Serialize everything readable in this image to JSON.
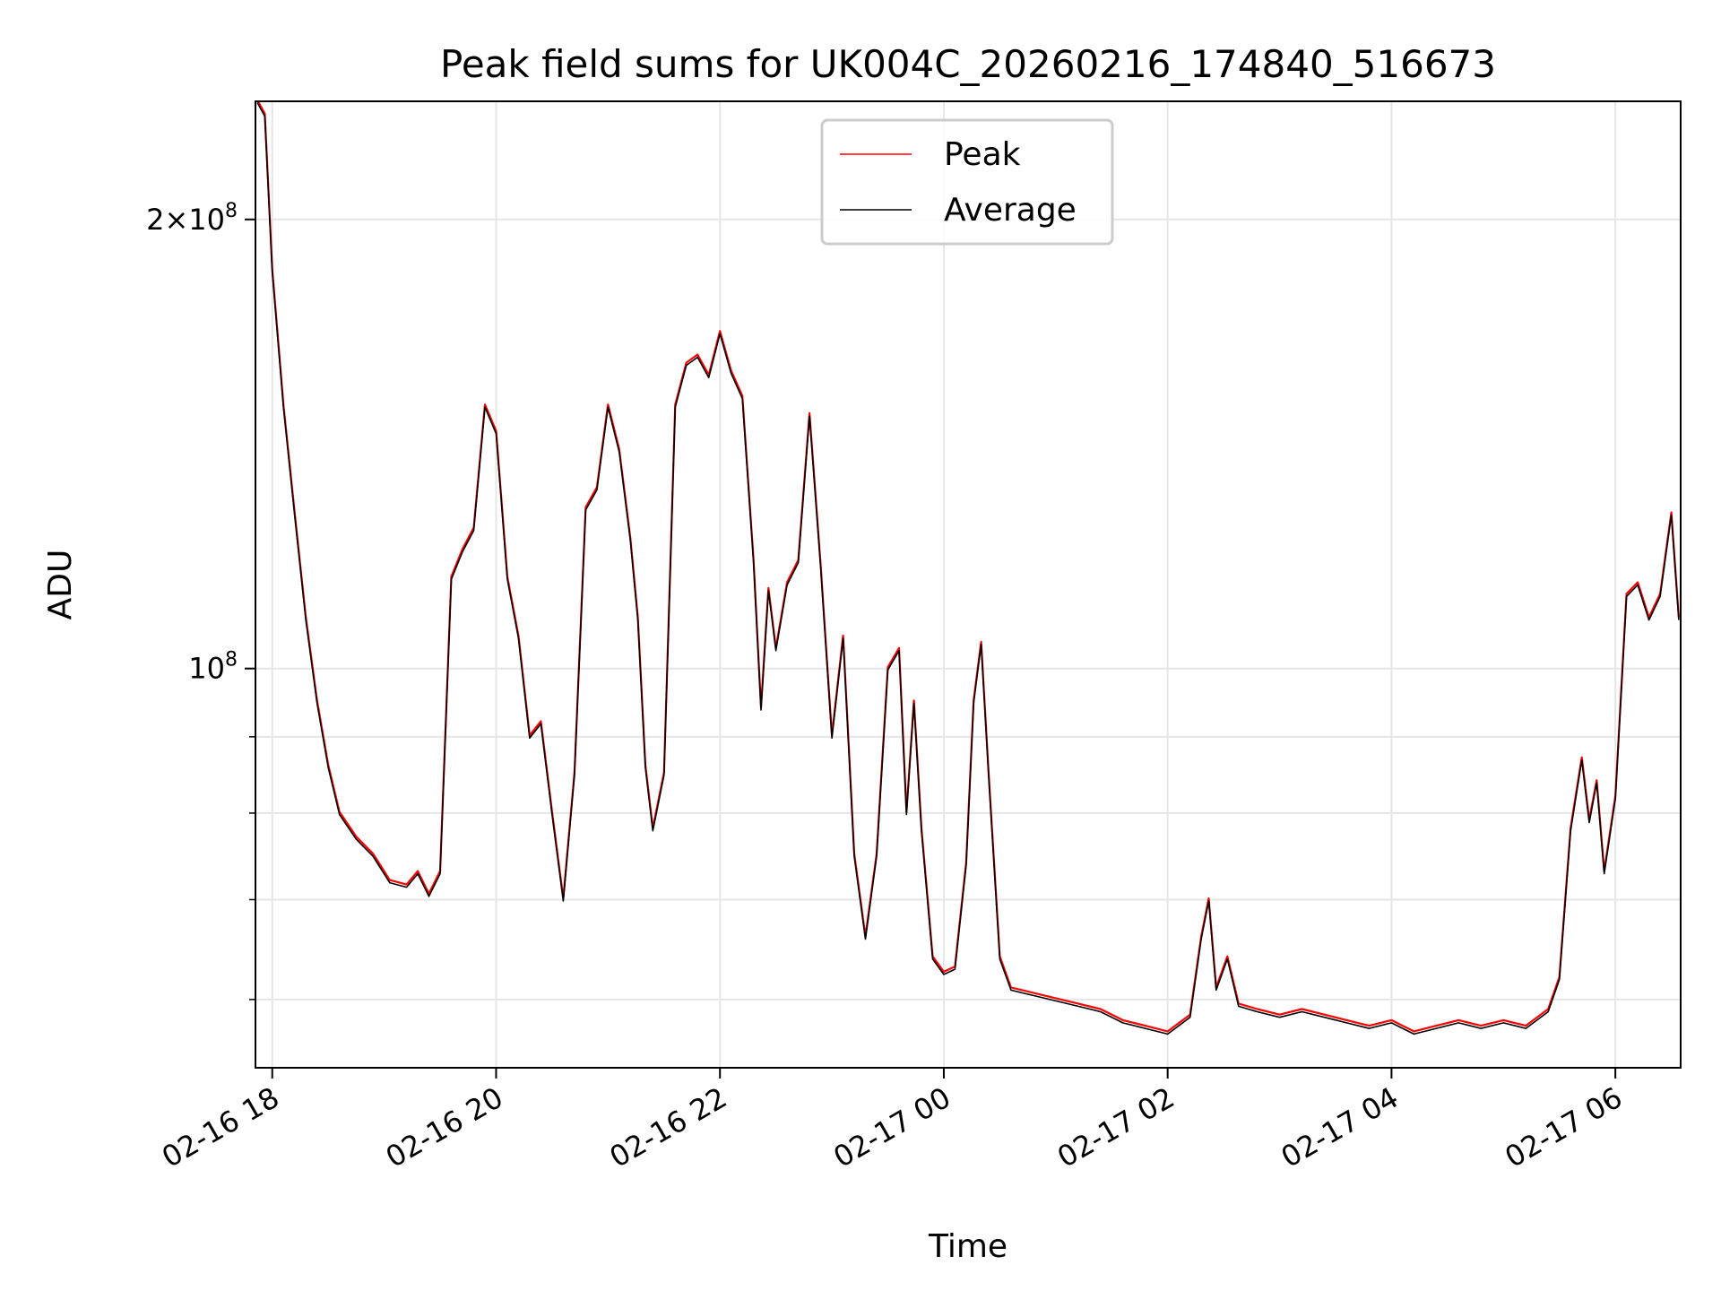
{
  "chart_data": {
    "type": "line",
    "title": "Peak field sums for UK004C_20260216_174840_516673",
    "xlabel": "Time",
    "ylabel": "ADU",
    "yscale": "log",
    "ylim": [
      54000000,
      240000000
    ],
    "xlim": [
      "2026-02-16 17:51",
      "2026-02-17 06:35"
    ],
    "grid": true,
    "legend_position": "top-center",
    "x_ticks": [
      {
        "t": "2026-02-16 18:00",
        "label": "02-16 18"
      },
      {
        "t": "2026-02-16 20:00",
        "label": "02-16 20"
      },
      {
        "t": "2026-02-16 22:00",
        "label": "02-16 22"
      },
      {
        "t": "2026-02-17 00:00",
        "label": "02-17 00"
      },
      {
        "t": "2026-02-17 02:00",
        "label": "02-17 02"
      },
      {
        "t": "2026-02-17 04:00",
        "label": "02-17 04"
      },
      {
        "t": "2026-02-17 06:00",
        "label": "02-17 06"
      }
    ],
    "y_ticks": [
      {
        "value": 200000000,
        "mantissa": "2",
        "times": "×",
        "base": "10",
        "exp": "8"
      },
      {
        "value": 100000000,
        "mantissa": "",
        "times": "",
        "base": "10",
        "exp": "8"
      }
    ],
    "y_minor_ticks": [
      60000000,
      70000000,
      80000000,
      90000000
    ],
    "series": [
      {
        "name": "Peak",
        "color": "#ff0000",
        "points": [
          [
            "2026-02-16 17:52",
            240000000
          ],
          [
            "2026-02-16 17:56",
            235000000
          ],
          [
            "2026-02-16 18:00",
            185000000
          ],
          [
            "2026-02-16 18:06",
            150000000
          ],
          [
            "2026-02-16 18:12",
            127000000
          ],
          [
            "2026-02-16 18:18",
            108000000
          ],
          [
            "2026-02-16 18:24",
            95000000
          ],
          [
            "2026-02-16 18:30",
            86000000
          ],
          [
            "2026-02-16 18:36",
            80000000
          ],
          [
            "2026-02-16 18:45",
            77000000
          ],
          [
            "2026-02-16 18:54",
            75000000
          ],
          [
            "2026-02-16 19:03",
            72000000
          ],
          [
            "2026-02-16 19:12",
            71500000
          ],
          [
            "2026-02-16 19:18",
            73000000
          ],
          [
            "2026-02-16 19:24",
            70500000
          ],
          [
            "2026-02-16 19:30",
            73000000
          ],
          [
            "2026-02-16 19:36",
            115000000
          ],
          [
            "2026-02-16 19:42",
            120000000
          ],
          [
            "2026-02-16 19:48",
            124000000
          ],
          [
            "2026-02-16 19:54",
            150000000
          ],
          [
            "2026-02-16 20:00",
            144000000
          ],
          [
            "2026-02-16 20:06",
            115000000
          ],
          [
            "2026-02-16 20:12",
            105000000
          ],
          [
            "2026-02-16 20:18",
            90000000
          ],
          [
            "2026-02-16 20:24",
            92000000
          ],
          [
            "2026-02-16 20:30",
            80000000
          ],
          [
            "2026-02-16 20:36",
            70000000
          ],
          [
            "2026-02-16 20:42",
            85000000
          ],
          [
            "2026-02-16 20:48",
            128000000
          ],
          [
            "2026-02-16 20:54",
            132000000
          ],
          [
            "2026-02-16 21:00",
            150000000
          ],
          [
            "2026-02-16 21:06",
            140000000
          ],
          [
            "2026-02-16 21:12",
            122000000
          ],
          [
            "2026-02-16 21:16",
            108000000
          ],
          [
            "2026-02-16 21:20",
            86000000
          ],
          [
            "2026-02-16 21:24",
            78000000
          ],
          [
            "2026-02-16 21:30",
            85000000
          ],
          [
            "2026-02-16 21:36",
            150000000
          ],
          [
            "2026-02-16 21:42",
            160000000
          ],
          [
            "2026-02-16 21:48",
            162000000
          ],
          [
            "2026-02-16 21:54",
            157000000
          ],
          [
            "2026-02-16 22:00",
            168000000
          ],
          [
            "2026-02-16 22:06",
            158000000
          ],
          [
            "2026-02-16 22:12",
            152000000
          ],
          [
            "2026-02-16 22:18",
            118000000
          ],
          [
            "2026-02-16 22:22",
            94000000
          ],
          [
            "2026-02-16 22:26",
            113000000
          ],
          [
            "2026-02-16 22:30",
            103000000
          ],
          [
            "2026-02-16 22:36",
            114000000
          ],
          [
            "2026-02-16 22:42",
            118000000
          ],
          [
            "2026-02-16 22:48",
            148000000
          ],
          [
            "2026-02-16 22:54",
            117000000
          ],
          [
            "2026-02-16 23:00",
            90000000
          ],
          [
            "2026-02-16 23:06",
            105000000
          ],
          [
            "2026-02-16 23:12",
            75000000
          ],
          [
            "2026-02-16 23:18",
            66000000
          ],
          [
            "2026-02-16 23:24",
            75000000
          ],
          [
            "2026-02-16 23:30",
            100000000
          ],
          [
            "2026-02-16 23:36",
            103000000
          ],
          [
            "2026-02-16 23:40",
            80000000
          ],
          [
            "2026-02-16 23:44",
            95000000
          ],
          [
            "2026-02-16 23:48",
            78000000
          ],
          [
            "2026-02-16 23:54",
            64000000
          ],
          [
            "2026-02-17 00:00",
            62500000
          ],
          [
            "2026-02-17 00:06",
            63000000
          ],
          [
            "2026-02-17 00:12",
            74000000
          ],
          [
            "2026-02-17 00:16",
            95000000
          ],
          [
            "2026-02-17 00:20",
            104000000
          ],
          [
            "2026-02-17 00:24",
            85000000
          ],
          [
            "2026-02-17 00:30",
            64000000
          ],
          [
            "2026-02-17 00:36",
            61000000
          ],
          [
            "2026-02-17 00:48",
            60500000
          ],
          [
            "2026-02-17 01:00",
            60000000
          ],
          [
            "2026-02-17 01:12",
            59500000
          ],
          [
            "2026-02-17 01:24",
            59000000
          ],
          [
            "2026-02-17 01:36",
            58000000
          ],
          [
            "2026-02-17 01:48",
            57500000
          ],
          [
            "2026-02-17 02:00",
            57000000
          ],
          [
            "2026-02-17 02:12",
            58500000
          ],
          [
            "2026-02-17 02:18",
            66000000
          ],
          [
            "2026-02-17 02:22",
            70000000
          ],
          [
            "2026-02-17 02:26",
            61000000
          ],
          [
            "2026-02-17 02:32",
            64000000
          ],
          [
            "2026-02-17 02:38",
            59500000
          ],
          [
            "2026-02-17 02:48",
            59000000
          ],
          [
            "2026-02-17 03:00",
            58500000
          ],
          [
            "2026-02-17 03:12",
            59000000
          ],
          [
            "2026-02-17 03:24",
            58500000
          ],
          [
            "2026-02-17 03:36",
            58000000
          ],
          [
            "2026-02-17 03:48",
            57500000
          ],
          [
            "2026-02-17 04:00",
            58000000
          ],
          [
            "2026-02-17 04:12",
            57000000
          ],
          [
            "2026-02-17 04:24",
            57500000
          ],
          [
            "2026-02-17 04:36",
            58000000
          ],
          [
            "2026-02-17 04:48",
            57500000
          ],
          [
            "2026-02-17 05:00",
            58000000
          ],
          [
            "2026-02-17 05:12",
            57500000
          ],
          [
            "2026-02-17 05:24",
            59000000
          ],
          [
            "2026-02-17 05:30",
            62000000
          ],
          [
            "2026-02-17 05:36",
            78000000
          ],
          [
            "2026-02-17 05:42",
            87000000
          ],
          [
            "2026-02-17 05:46",
            79000000
          ],
          [
            "2026-02-17 05:50",
            84000000
          ],
          [
            "2026-02-17 05:54",
            73000000
          ],
          [
            "2026-02-17 06:00",
            82000000
          ],
          [
            "2026-02-17 06:06",
            112000000
          ],
          [
            "2026-02-17 06:12",
            114000000
          ],
          [
            "2026-02-17 06:18",
            108000000
          ],
          [
            "2026-02-17 06:24",
            112000000
          ],
          [
            "2026-02-17 06:30",
            127000000
          ],
          [
            "2026-02-17 06:34",
            108000000
          ]
        ]
      },
      {
        "name": "Average",
        "color": "#000000",
        "points": []
      }
    ]
  }
}
